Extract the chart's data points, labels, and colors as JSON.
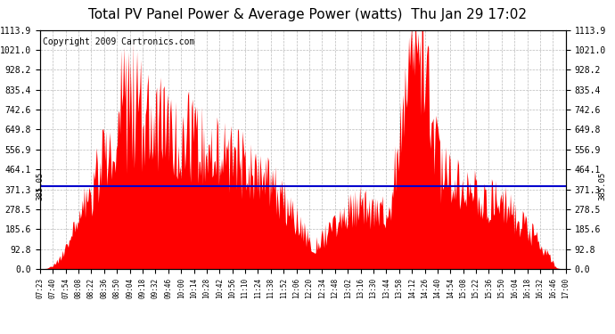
{
  "title": "Total PV Panel Power & Average Power (watts)  Thu Jan 29 17:02",
  "copyright": "Copyright 2009 Cartronics.com",
  "average_value": 385.05,
  "y_max": 1113.9,
  "y_min": 0.0,
  "y_ticks": [
    0.0,
    92.8,
    185.6,
    278.5,
    371.3,
    464.1,
    556.9,
    649.8,
    742.6,
    835.4,
    928.2,
    1021.0,
    1113.9
  ],
  "background_color": "#ffffff",
  "plot_bg_color": "#ffffff",
  "fill_color": "#ff0000",
  "line_color": "#0000cd",
  "grid_color": "#bbbbbb",
  "title_fontsize": 11,
  "copyright_fontsize": 7,
  "x_tick_fontsize": 5.5,
  "y_tick_fontsize": 7,
  "x_labels": [
    "07:23",
    "07:40",
    "07:54",
    "08:08",
    "08:22",
    "08:36",
    "08:50",
    "09:04",
    "09:18",
    "09:32",
    "09:46",
    "10:00",
    "10:14",
    "10:28",
    "10:42",
    "10:56",
    "11:10",
    "11:24",
    "11:38",
    "11:52",
    "12:06",
    "12:20",
    "12:34",
    "12:48",
    "13:02",
    "13:16",
    "13:30",
    "13:44",
    "13:58",
    "14:12",
    "14:26",
    "14:40",
    "14:54",
    "15:08",
    "15:22",
    "15:36",
    "15:50",
    "16:04",
    "16:18",
    "16:32",
    "16:46",
    "17:00"
  ]
}
